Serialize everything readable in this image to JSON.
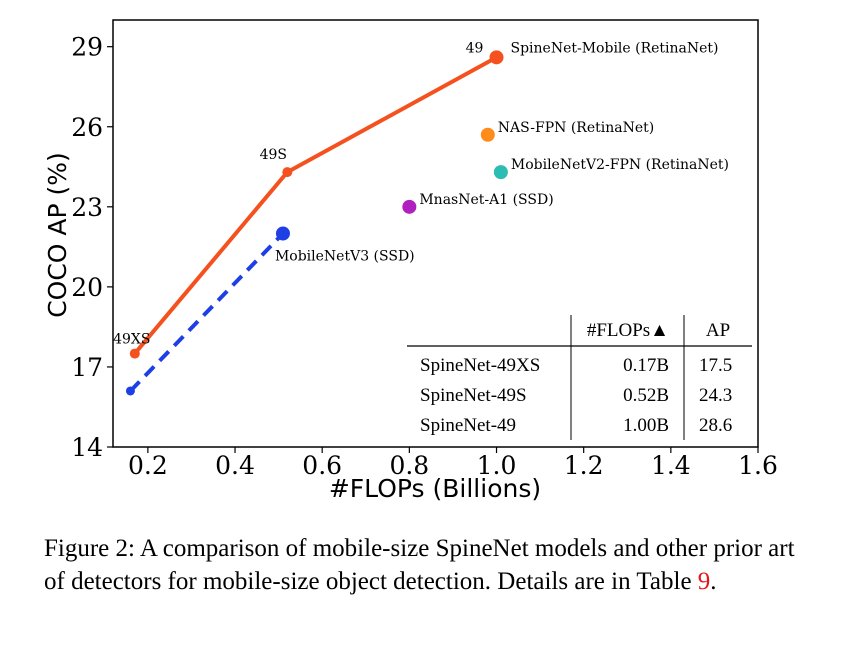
{
  "chart_data": {
    "type": "scatter",
    "xlabel": "#FLOPs (Billions)",
    "ylabel": "COCO AP (%)",
    "xlim": [
      0.12,
      1.6
    ],
    "ylim": [
      14,
      30
    ],
    "xticks": [
      "0.2",
      "0.4",
      "0.6",
      "0.8",
      "1.0",
      "1.2",
      "1.4",
      "1.6"
    ],
    "yticks": [
      "14",
      "17",
      "20",
      "23",
      "26",
      "29"
    ],
    "series": [
      {
        "name": "SpineNet-Mobile (RetinaNet)",
        "color": "#f4511e",
        "style": "solid-line",
        "points": [
          {
            "x": 0.17,
            "y": 17.5,
            "label": "49XS"
          },
          {
            "x": 0.52,
            "y": 24.3,
            "label": "49S"
          },
          {
            "x": 1.0,
            "y": 28.6,
            "label": "49"
          }
        ]
      },
      {
        "name": "MobileNetV3 (SSD)",
        "color": "#1f3fe6",
        "style": "dashed-line",
        "points": [
          {
            "x": 0.16,
            "y": 16.1
          },
          {
            "x": 0.51,
            "y": 22.0
          }
        ]
      }
    ],
    "others": [
      {
        "name": "NAS-FPN (RetinaNet)",
        "x": 0.98,
        "y": 25.7,
        "color": "#ff8c1a"
      },
      {
        "name": "MobileNetV2-FPN (RetinaNet)",
        "x": 1.01,
        "y": 24.3,
        "color": "#2cbcb4"
      },
      {
        "name": "MnasNet-A1 (SSD)",
        "x": 0.8,
        "y": 23.0,
        "color": "#b01fc0"
      }
    ],
    "table": {
      "headers": [
        "",
        "#FLOPs▲",
        "AP"
      ],
      "rows": [
        [
          "SpineNet-49XS",
          "0.17B",
          "17.5"
        ],
        [
          "SpineNet-49S",
          "0.52B",
          "24.3"
        ],
        [
          "SpineNet-49",
          "1.00B",
          "28.6"
        ]
      ]
    }
  },
  "caption": {
    "prefix": "Figure 2: A comparison of mobile-size SpineNet models and other prior art of detectors for mobile-size object detection. Details are in Table ",
    "ref": "9",
    "suffix": "."
  }
}
